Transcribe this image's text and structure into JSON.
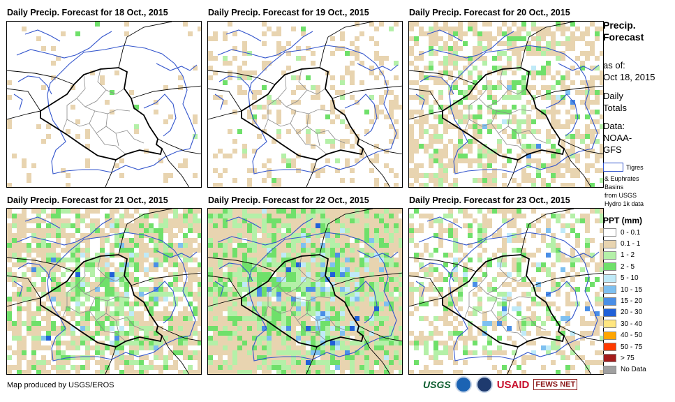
{
  "panels": [
    {
      "title": "Daily Precip. Forecast for 18 Oct., 2015"
    },
    {
      "title": "Daily Precip. Forecast for 19 Oct., 2015"
    },
    {
      "title": "Daily Precip. Forecast for 20 Oct., 2015"
    },
    {
      "title": "Daily Precip. Forecast for 21 Oct., 2015"
    },
    {
      "title": "Daily Precip. Forecast for 22 Oct., 2015"
    },
    {
      "title": "Daily Precip. Forecast for 23 Oct., 2015"
    }
  ],
  "sidebar": {
    "title_1": "Precip.",
    "title_2": "Forecast",
    "asof_1": "as of:",
    "asof_2": "Oct 18, 2015",
    "daily_1": "Daily",
    "daily_2": "Totals",
    "data_1": "Data:",
    "data_2": "NOAA-",
    "data_3": "GFS",
    "basin_1": "Tigres",
    "basin_2": "& Euphrates",
    "basin_3": "Basins",
    "basin_4": "from USGS",
    "basin_5": "Hydro 1k data",
    "ppt_title": "PPT (mm)"
  },
  "legend": [
    {
      "label": "0 - 0.1",
      "color": "#ffffff"
    },
    {
      "label": "0.1 - 1",
      "color": "#e8d4b0"
    },
    {
      "label": "1 - 2",
      "color": "#b4f0a8"
    },
    {
      "label": "2 - 5",
      "color": "#6fe06a"
    },
    {
      "label": "5 - 10",
      "color": "#bfeaf8"
    },
    {
      "label": "10 - 15",
      "color": "#7ec0f0"
    },
    {
      "label": "15 - 20",
      "color": "#4a8ee6"
    },
    {
      "label": "20 - 30",
      "color": "#2060d8"
    },
    {
      "label": "30 - 40",
      "color": "#ffe680"
    },
    {
      "label": "40 - 50",
      "color": "#ffa500"
    },
    {
      "label": "50 - 75",
      "color": "#ff3a00"
    },
    {
      "label": "> 75",
      "color": "#a51c1c"
    },
    {
      "label": "No Data",
      "color": "#a0a0a0"
    }
  ],
  "footer": {
    "credit": "Map produced by USGS/EROS",
    "logo_usgs": "USGS",
    "logo_usaid": "USAID",
    "logo_fews": "FEWS NET"
  },
  "colors": {
    "basin_outline": "#3355cc",
    "country_border": "#000000",
    "province_border": "#8a8a8a"
  },
  "intensity": [
    {
      "light": 0.05,
      "green": 0.01,
      "blue": 0.0,
      "seed": 3
    },
    {
      "light": 0.14,
      "green": 0.04,
      "blue": 0.0,
      "seed": 7
    },
    {
      "light": 0.18,
      "green": 0.2,
      "blue": 0.01,
      "seed": 11
    },
    {
      "light": 0.18,
      "green": 0.25,
      "blue": 0.06,
      "seed": 17
    },
    {
      "light": 0.18,
      "green": 0.3,
      "blue": 0.14,
      "seed": 23
    },
    {
      "light": 0.16,
      "green": 0.1,
      "blue": 0.05,
      "seed": 29
    }
  ]
}
